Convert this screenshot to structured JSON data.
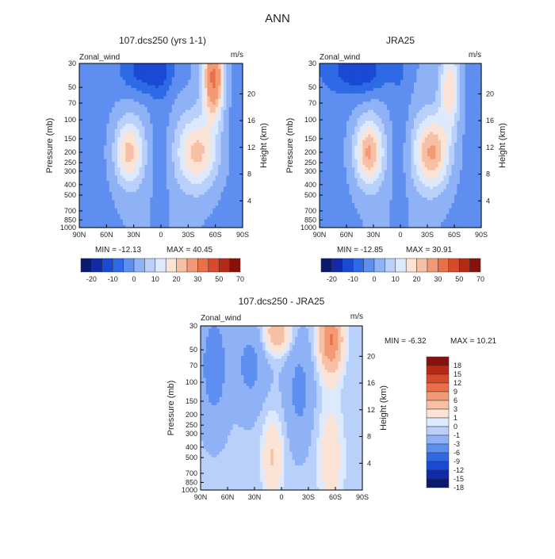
{
  "figure": {
    "title": "ANN",
    "panel_titles": [
      "107.dcs250 (yrs 1-1)",
      "JRA25",
      "107.dcs250 - JRA25"
    ],
    "variable_label": "Zonal_wind",
    "units_label": "m/s",
    "left_axis_label": "Pressure (mb)",
    "right_axis_label": "Height (km)"
  },
  "colors": {
    "mean_palette": [
      "#0a1a6e",
      "#102aa8",
      "#1a49d6",
      "#2f6ae6",
      "#5e8ff0",
      "#8eb2f5",
      "#b8d0fa",
      "#dde9fd",
      "#fbe3d6",
      "#f7c0a5",
      "#f29a75",
      "#ea7049",
      "#d84a2a",
      "#b52a17",
      "#86120b"
    ],
    "diff_palette": [
      "#0a1a6e",
      "#102aa8",
      "#1a49d6",
      "#2f6ae6",
      "#5e8ff0",
      "#8eb2f5",
      "#b8d0fa",
      "#dde9fd",
      "#fbe3d6",
      "#f7c0a5",
      "#f29a75",
      "#ea7049",
      "#d84a2a",
      "#b52a17",
      "#86120b"
    ]
  },
  "chart_data": [
    {
      "type": "heatmap",
      "title": "107.dcs250 (yrs 1-1)",
      "subtitle_left": "Zonal_wind",
      "subtitle_right": "m/s",
      "xlabel": "",
      "ylabel": "Pressure (mb)",
      "y2label": "Height (km)",
      "x_ticks": [
        "90N",
        "60N",
        "30N",
        "0",
        "30S",
        "60S",
        "90S"
      ],
      "y_ticks": [
        30,
        50,
        70,
        100,
        150,
        200,
        250,
        300,
        400,
        500,
        700,
        850,
        1000
      ],
      "y2_ticks": [
        4,
        8,
        12,
        16,
        20
      ],
      "min_label": "MIN = -12.13",
      "max_label": "MAX = 40.45",
      "min": -12.13,
      "max": 40.45,
      "colorbar_labels": [
        "-20",
        "-10",
        "0",
        "10",
        "20",
        "30",
        "50",
        "70"
      ],
      "jets": [
        {
          "lat": -40,
          "p": 200,
          "value": 24,
          "sx": 16,
          "sy": 0.55
        },
        {
          "lat": -58,
          "p": 40,
          "value": 40,
          "sx": 8,
          "sy": 0.6
        },
        {
          "lat": 35,
          "p": 200,
          "value": 24,
          "sx": 11,
          "sy": 0.5
        },
        {
          "lat": 15,
          "p": 35,
          "value": -12,
          "sx": 20,
          "sy": 0.35
        }
      ]
    },
    {
      "type": "heatmap",
      "title": "JRA25",
      "subtitle_left": "Zonal_wind",
      "subtitle_right": "m/s",
      "xlabel": "",
      "ylabel": "Pressure (mb)",
      "y2label": "Height (km)",
      "x_ticks": [
        "90N",
        "60N",
        "30N",
        "0",
        "30S",
        "60S",
        "90S"
      ],
      "y_ticks": [
        30,
        50,
        70,
        100,
        150,
        200,
        250,
        300,
        400,
        500,
        700,
        850,
        1000
      ],
      "y2_ticks": [
        4,
        8,
        12,
        16,
        20
      ],
      "min_label": "MIN = -12.85",
      "max_label": "MAX = 30.91",
      "min": -12.85,
      "max": 30.91,
      "colorbar_labels": [
        "-20",
        "-10",
        "0",
        "10",
        "20",
        "30",
        "50",
        "70"
      ],
      "jets": [
        {
          "lat": -35,
          "p": 200,
          "value": 28,
          "sx": 14,
          "sy": 0.55
        },
        {
          "lat": -55,
          "p": 50,
          "value": 22,
          "sx": 8,
          "sy": 0.6
        },
        {
          "lat": 35,
          "p": 200,
          "value": 28,
          "sx": 11,
          "sy": 0.5
        },
        {
          "lat": 45,
          "p": 35,
          "value": -12,
          "sx": 25,
          "sy": 0.35
        }
      ]
    },
    {
      "type": "heatmap",
      "title": "107.dcs250 - JRA25",
      "subtitle_left": "Zonal_wind",
      "subtitle_right": "m/s",
      "xlabel": "",
      "ylabel": "Pressure (mb)",
      "y2label": "Height (km)",
      "x_ticks": [
        "90N",
        "60N",
        "30N",
        "0",
        "30S",
        "60S",
        "90S"
      ],
      "y_ticks": [
        30,
        50,
        70,
        100,
        150,
        200,
        250,
        300,
        400,
        500,
        700,
        850,
        1000
      ],
      "y2_ticks": [
        4,
        8,
        12,
        16,
        20
      ],
      "min_label": "MIN =   -6.32",
      "max_label": "MAX =   10.21",
      "min": -6.32,
      "max": 10.21,
      "colorbar_labels": [
        "18",
        "15",
        "12",
        "9",
        "6",
        "3",
        "1",
        "0",
        "-1",
        "-3",
        "-6",
        "-9",
        "-12",
        "-15",
        "-18"
      ],
      "anomalies": [
        {
          "lat": -55,
          "p": 40,
          "value": 10,
          "sx": 9,
          "sy": 0.5
        },
        {
          "lat": -55,
          "p": 500,
          "value": 3,
          "sx": 10,
          "sy": 0.9
        },
        {
          "lat": 5,
          "p": 35,
          "value": 6,
          "sx": 10,
          "sy": 0.3
        },
        {
          "lat": 10,
          "p": 500,
          "value": 4,
          "sx": 8,
          "sy": 0.6
        },
        {
          "lat": 75,
          "p": 70,
          "value": -4,
          "sx": 10,
          "sy": 0.8
        },
        {
          "lat": 35,
          "p": 70,
          "value": -3,
          "sx": 12,
          "sy": 0.6
        },
        {
          "lat": -20,
          "p": 120,
          "value": -3,
          "sx": 10,
          "sy": 0.7
        }
      ]
    }
  ]
}
